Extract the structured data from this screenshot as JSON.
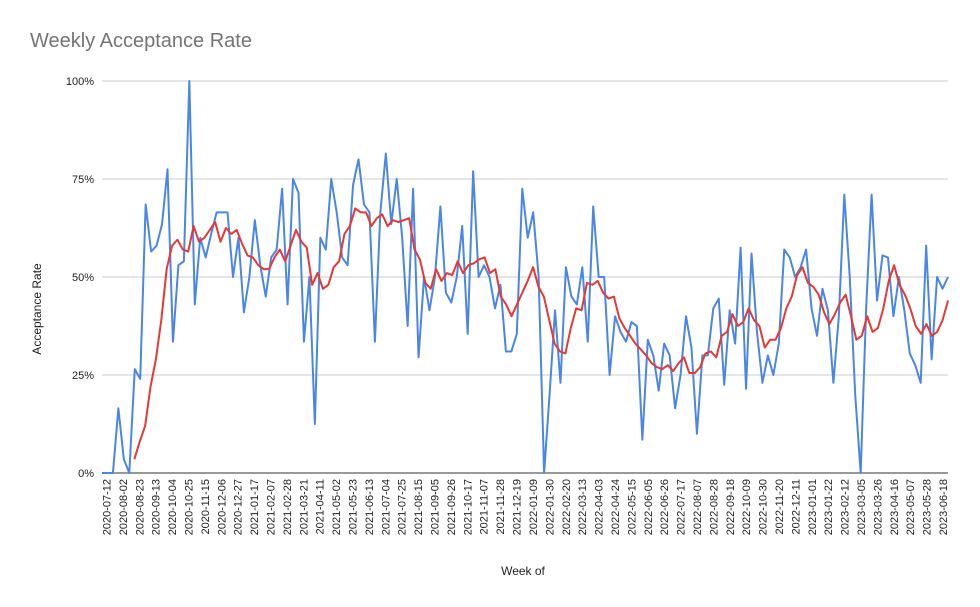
{
  "chart_data": {
    "type": "line",
    "title": "Weekly Acceptance Rate",
    "xlabel": "Week of",
    "ylabel": "Acceptance Rate",
    "ylim": [
      0,
      100
    ],
    "yticks": [
      "0%",
      "25%",
      "50%",
      "75%",
      "100%"
    ],
    "grid": true,
    "x_labels": [
      "2020-07-12",
      "2020-08-02",
      "2020-08-23",
      "2020-09-13",
      "2020-10-04",
      "2020-10-25",
      "2020-11-15",
      "2020-12-06",
      "2020-12-27",
      "2021-01-17",
      "2021-02-07",
      "2021-02-28",
      "2021-03-21",
      "2021-04-11",
      "2021-05-02",
      "2021-05-23",
      "2021-06-13",
      "2021-07-04",
      "2021-07-25",
      "2021-08-15",
      "2021-09-05",
      "2021-09-26",
      "2021-10-17",
      "2021-11-07",
      "2021-11-28",
      "2021-12-19",
      "2022-01-09",
      "2022-01-30",
      "2022-02-20",
      "2022-03-13",
      "2022-04-03",
      "2022-04-24",
      "2022-05-15",
      "2022-06-05",
      "2022-06-26",
      "2022-07-17",
      "2022-08-07",
      "2022-08-28",
      "2022-09-18",
      "2022-10-09",
      "2022-10-30",
      "2022-11-20",
      "2022-12-11",
      "2023-01-01",
      "2023-01-22",
      "2023-02-12",
      "2023-03-05",
      "2023-03-26",
      "2023-04-16",
      "2023-05-07",
      "2023-05-28",
      "2023-06-18"
    ],
    "series": [
      {
        "color": "#4a86e8",
        "values": [
          0,
          0,
          0,
          16.5,
          3.5,
          0,
          26.5,
          24,
          68.5,
          56.5,
          58,
          63.5,
          77.5,
          33.5,
          53,
          54,
          100,
          43,
          60,
          55,
          61,
          66.5,
          66.5,
          66.5,
          50,
          60,
          41,
          50,
          64.5,
          53,
          45,
          55,
          57,
          72.5,
          43,
          75,
          71.5,
          33.5,
          50,
          12.5,
          60,
          57,
          75,
          66.5,
          55,
          53,
          73.5,
          80,
          68.5,
          66.5,
          33.5,
          66.5,
          81.5,
          63.5,
          75,
          60,
          37.5,
          72.5,
          29.5,
          50,
          41.5,
          50,
          68,
          46,
          43.5,
          50,
          63,
          35.5,
          77,
          50,
          53,
          50,
          42,
          48,
          31,
          31,
          35.5,
          72.5,
          60,
          66.5,
          50,
          0,
          20,
          41.5,
          23,
          52.5,
          45,
          43,
          52.5,
          33.5,
          68,
          50,
          50,
          25,
          40,
          36,
          33.5,
          38.5,
          37.5,
          8.5,
          34,
          30,
          21,
          33,
          30,
          16.5,
          25,
          40,
          32,
          10,
          30,
          30,
          42,
          44.5,
          22.5,
          41.5,
          33,
          57.5,
          21.5,
          56,
          36,
          23,
          30,
          25,
          33,
          57,
          55,
          50,
          52.5,
          57,
          42,
          35,
          47,
          41.5,
          23,
          40,
          71,
          50,
          20,
          0,
          42,
          71,
          44,
          55.5,
          55,
          40,
          50,
          41.5,
          30.5,
          27.5,
          23,
          58,
          29,
          50,
          47,
          50
        ]
      },
      {
        "color": "#e53935",
        "values": [
          null,
          null,
          null,
          null,
          null,
          null,
          3.5,
          8,
          12,
          22,
          29,
          39,
          52,
          58,
          59.5,
          57,
          56.5,
          63,
          59,
          60,
          62,
          64,
          59,
          62.5,
          61,
          62,
          58.5,
          55.5,
          55,
          53,
          52,
          52,
          55,
          57,
          54,
          58,
          62,
          59,
          57.5,
          48,
          51,
          47,
          48,
          52.5,
          54,
          61,
          63,
          67.5,
          66.5,
          66.5,
          63,
          65,
          66,
          63,
          64.5,
          64,
          64.5,
          65,
          57,
          54.5,
          48.5,
          47,
          52,
          49,
          51,
          50.5,
          54,
          51,
          53,
          53.5,
          54.5,
          55,
          51,
          52,
          45,
          43,
          40,
          43,
          46,
          49,
          52.5,
          47.5,
          45,
          39,
          33,
          31,
          30.5,
          37,
          42,
          41.5,
          48.5,
          48,
          49,
          46,
          44.5,
          45,
          39.5,
          37,
          35,
          33,
          31.5,
          30,
          28,
          27,
          26.5,
          27.5,
          26,
          28,
          29.5,
          25.5,
          25.5,
          27,
          30.5,
          31,
          29.5,
          35,
          36,
          40.5,
          37.5,
          38.5,
          42,
          39,
          37.5,
          32,
          34,
          34,
          37,
          42,
          45,
          50.5,
          52.5,
          48.5,
          47.5,
          45.5,
          41,
          38,
          40.5,
          43.5,
          45.5,
          40,
          34,
          35,
          40,
          36,
          37,
          42,
          49,
          53,
          48,
          45.5,
          42,
          37.5,
          35.5,
          38,
          35,
          36,
          39,
          44
        ]
      }
    ]
  }
}
